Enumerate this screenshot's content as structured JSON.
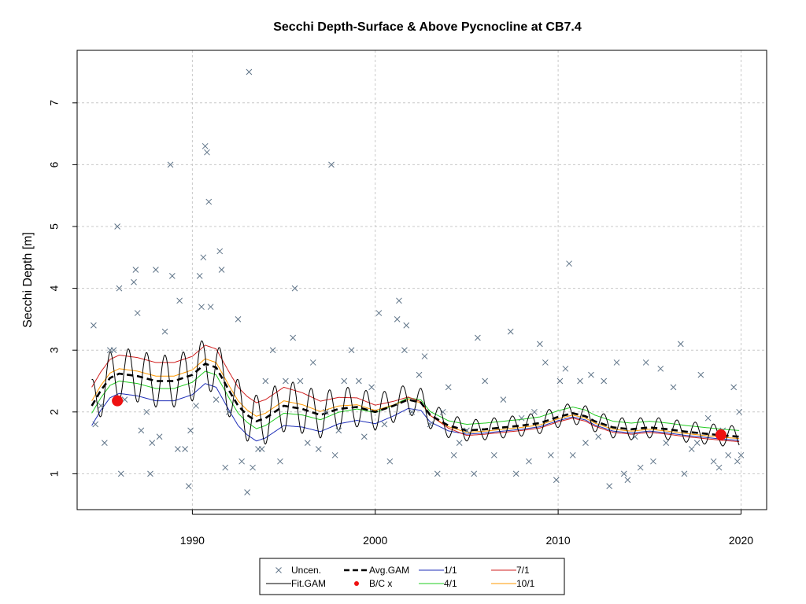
{
  "chart_data": {
    "type": "line",
    "title": "Secchi Depth-Surface & Above Pycnocline at CB7.4",
    "xlabel": "",
    "ylabel": "Secchi Depth [m]",
    "xlim": [
      1983.7,
      2021.4
    ],
    "ylim": [
      0.42,
      7.85
    ],
    "xticks": [
      1990,
      2000,
      2010,
      2020
    ],
    "yticks": [
      1,
      2,
      3,
      4,
      5,
      6,
      7
    ],
    "grid": true,
    "legend": {
      "position": "bottom",
      "entries": [
        {
          "label": "Uncen.",
          "kind": "x-marker",
          "color": "#5f7488"
        },
        {
          "label": "Avg.GAM",
          "kind": "dashed-line",
          "color": "#000000"
        },
        {
          "label": "1/1",
          "kind": "line",
          "color": "#1f2fb8"
        },
        {
          "label": "7/1",
          "kind": "line",
          "color": "#d02020"
        },
        {
          "label": "Fit.GAM",
          "kind": "line",
          "color": "#000000"
        },
        {
          "label": "B/C x",
          "kind": "dot",
          "color": "#ee1111"
        },
        {
          "label": "4/1",
          "kind": "line",
          "color": "#22cc22"
        },
        {
          "label": "10/1",
          "kind": "line",
          "color": "#ff9900"
        }
      ]
    },
    "colors": {
      "avg": "#000000",
      "fit": "#000000",
      "s1_1": "#1f2fb8",
      "s7_1": "#d02020",
      "s4_1": "#22cc22",
      "s10_1": "#ff9900",
      "points": "#5f7488",
      "bc": "#ee1111"
    },
    "avg_gam": {
      "x": [
        1984.5,
        1985.0,
        1985.5,
        1986.0,
        1987.0,
        1988.0,
        1989.0,
        1990.0,
        1990.7,
        1991.3,
        1992.0,
        1992.5,
        1993.0,
        1993.5,
        1994.0,
        1995.0,
        1996.0,
        1997.0,
        1998.0,
        1999.0,
        2000.0,
        2001.0,
        2001.8,
        2002.5,
        2003.0,
        2004.0,
        2005.0,
        2006.0,
        2007.0,
        2008.0,
        2009.0,
        2010.0,
        2010.8,
        2011.5,
        2012.0,
        2013.0,
        2014.0,
        2015.0,
        2016.0,
        2017.0,
        2018.0,
        2019.0,
        2019.9
      ],
      "y": [
        2.1,
        2.35,
        2.55,
        2.62,
        2.58,
        2.5,
        2.5,
        2.6,
        2.78,
        2.72,
        2.35,
        2.1,
        1.95,
        1.85,
        1.9,
        2.1,
        2.05,
        1.95,
        2.05,
        2.08,
        2.0,
        2.1,
        2.2,
        2.15,
        1.95,
        1.78,
        1.7,
        1.72,
        1.75,
        1.78,
        1.82,
        1.92,
        1.98,
        1.93,
        1.85,
        1.75,
        1.72,
        1.75,
        1.72,
        1.68,
        1.65,
        1.62,
        1.6
      ]
    },
    "seasonal_offsets": {
      "1/1": -0.32,
      "4/1": -0.12,
      "7/1": 0.3,
      "10/1": 0.08
    },
    "seasonal_offsets_late": {
      "1/1": -0.06,
      "4/1": 0.1,
      "7/1": -0.08,
      "10/1": -0.03
    },
    "fit_amplitude_early": 0.42,
    "fit_amplitude_late": 0.17,
    "bc_points": [
      {
        "x": 1985.9,
        "y": 2.18
      },
      {
        "x": 2018.9,
        "y": 1.63
      }
    ],
    "observations": [
      [
        1984.6,
        3.4
      ],
      [
        1984.7,
        1.8
      ],
      [
        1985.0,
        2.1
      ],
      [
        1985.2,
        1.5
      ],
      [
        1985.5,
        3.0
      ],
      [
        1985.7,
        3.0
      ],
      [
        1985.9,
        5.0
      ],
      [
        1986.0,
        4.0
      ],
      [
        1986.1,
        1.0
      ],
      [
        1986.3,
        2.2
      ],
      [
        1986.8,
        4.1
      ],
      [
        1986.9,
        4.3
      ],
      [
        1987.0,
        3.6
      ],
      [
        1987.2,
        1.7
      ],
      [
        1987.5,
        2.0
      ],
      [
        1987.7,
        1.0
      ],
      [
        1987.8,
        1.5
      ],
      [
        1988.0,
        4.3
      ],
      [
        1988.2,
        1.6
      ],
      [
        1988.5,
        3.3
      ],
      [
        1988.8,
        6.0
      ],
      [
        1988.9,
        4.2
      ],
      [
        1989.2,
        1.4
      ],
      [
        1989.3,
        3.8
      ],
      [
        1989.6,
        1.4
      ],
      [
        1989.8,
        0.8
      ],
      [
        1989.9,
        1.7
      ],
      [
        1990.2,
        2.1
      ],
      [
        1990.4,
        4.2
      ],
      [
        1990.5,
        3.7
      ],
      [
        1990.6,
        4.5
      ],
      [
        1990.7,
        6.3
      ],
      [
        1990.8,
        6.2
      ],
      [
        1990.9,
        5.4
      ],
      [
        1991.0,
        3.7
      ],
      [
        1991.3,
        2.2
      ],
      [
        1991.5,
        4.6
      ],
      [
        1991.6,
        4.3
      ],
      [
        1991.8,
        1.1
      ],
      [
        1992.0,
        2.0
      ],
      [
        1992.5,
        3.5
      ],
      [
        1992.7,
        1.2
      ],
      [
        1993.0,
        0.7
      ],
      [
        1993.1,
        7.5
      ],
      [
        1993.3,
        1.1
      ],
      [
        1993.6,
        1.4
      ],
      [
        1993.8,
        1.4
      ],
      [
        1994.0,
        2.5
      ],
      [
        1994.4,
        3.0
      ],
      [
        1994.8,
        1.2
      ],
      [
        1995.1,
        2.5
      ],
      [
        1995.5,
        3.2
      ],
      [
        1995.6,
        4.0
      ],
      [
        1995.9,
        2.5
      ],
      [
        1996.3,
        1.5
      ],
      [
        1996.6,
        2.8
      ],
      [
        1996.9,
        1.4
      ],
      [
        1997.3,
        2.0
      ],
      [
        1997.6,
        6.0
      ],
      [
        1997.8,
        1.3
      ],
      [
        1998.0,
        1.7
      ],
      [
        1998.3,
        2.5
      ],
      [
        1998.7,
        3.0
      ],
      [
        1999.1,
        2.5
      ],
      [
        1999.4,
        1.6
      ],
      [
        1999.8,
        2.4
      ],
      [
        2000.2,
        3.6
      ],
      [
        2000.5,
        1.8
      ],
      [
        2000.8,
        1.2
      ],
      [
        2001.2,
        3.5
      ],
      [
        2001.3,
        3.8
      ],
      [
        2001.6,
        3.0
      ],
      [
        2001.7,
        3.4
      ],
      [
        2002.0,
        2.0
      ],
      [
        2002.4,
        2.6
      ],
      [
        2002.7,
        2.9
      ],
      [
        2003.0,
        1.8
      ],
      [
        2003.4,
        1.0
      ],
      [
        2003.7,
        2.0
      ],
      [
        2004.0,
        2.4
      ],
      [
        2004.3,
        1.3
      ],
      [
        2004.6,
        1.5
      ],
      [
        2005.0,
        1.7
      ],
      [
        2005.4,
        1.0
      ],
      [
        2005.6,
        3.2
      ],
      [
        2006.0,
        2.5
      ],
      [
        2006.5,
        1.3
      ],
      [
        2007.0,
        2.2
      ],
      [
        2007.4,
        3.3
      ],
      [
        2007.7,
        1.0
      ],
      [
        2008.0,
        1.9
      ],
      [
        2008.4,
        1.2
      ],
      [
        2008.7,
        2.0
      ],
      [
        2009.0,
        3.1
      ],
      [
        2009.3,
        2.8
      ],
      [
        2009.6,
        1.3
      ],
      [
        2009.9,
        0.9
      ],
      [
        2010.1,
        2.5
      ],
      [
        2010.4,
        2.7
      ],
      [
        2010.6,
        4.4
      ],
      [
        2010.8,
        1.3
      ],
      [
        2011.2,
        2.5
      ],
      [
        2011.5,
        1.5
      ],
      [
        2011.8,
        2.6
      ],
      [
        2012.2,
        1.6
      ],
      [
        2012.5,
        2.5
      ],
      [
        2012.8,
        0.8
      ],
      [
        2013.2,
        2.8
      ],
      [
        2013.6,
        1.0
      ],
      [
        2013.8,
        0.9
      ],
      [
        2014.2,
        1.6
      ],
      [
        2014.5,
        1.1
      ],
      [
        2014.8,
        2.8
      ],
      [
        2015.2,
        1.2
      ],
      [
        2015.6,
        2.7
      ],
      [
        2015.9,
        1.5
      ],
      [
        2016.3,
        2.4
      ],
      [
        2016.7,
        3.1
      ],
      [
        2016.9,
        1.0
      ],
      [
        2017.3,
        1.4
      ],
      [
        2017.6,
        1.5
      ],
      [
        2017.8,
        2.6
      ],
      [
        2018.2,
        1.9
      ],
      [
        2018.5,
        1.2
      ],
      [
        2018.8,
        1.1
      ],
      [
        2019.0,
        1.7
      ],
      [
        2019.3,
        1.3
      ],
      [
        2019.6,
        2.4
      ],
      [
        2019.8,
        1.2
      ],
      [
        2019.9,
        2.0
      ],
      [
        2020.0,
        1.3
      ]
    ]
  }
}
